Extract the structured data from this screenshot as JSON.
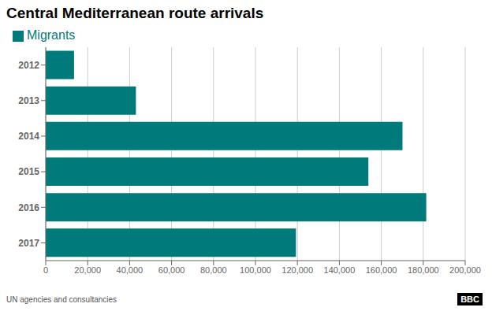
{
  "chart_data": {
    "type": "bar",
    "title": "Central Mediterranean route arrivals",
    "orientation": "horizontal",
    "categories": [
      "2012",
      "2013",
      "2014",
      "2015",
      "2016",
      "2017"
    ],
    "series": [
      {
        "name": "Migrants",
        "color": "#007a7a",
        "values": [
          13500,
          43000,
          170100,
          153842,
          181436,
          119310
        ]
      }
    ],
    "xlim": [
      0,
      200000
    ],
    "xticks": [
      0,
      {
        "value": 20000,
        "label": "20,000"
      },
      {
        "value": 40000,
        "label": "40,000"
      },
      {
        "value": 60000,
        "label": "60,000"
      },
      {
        "value": 80000,
        "label": "80,000"
      },
      {
        "value": 100000,
        "label": "100,000"
      },
      {
        "value": 120000,
        "label": "120,000"
      },
      {
        "value": 140000,
        "label": "140,000"
      },
      {
        "value": 160000,
        "label": "160,000"
      },
      {
        "value": 180000,
        "label": "180,000"
      },
      {
        "value": 200000,
        "label": "200,000"
      }
    ],
    "grid": true,
    "legend": "top-left",
    "annotations": [
      "UN agencies and consultancies",
      "BBC"
    ]
  }
}
